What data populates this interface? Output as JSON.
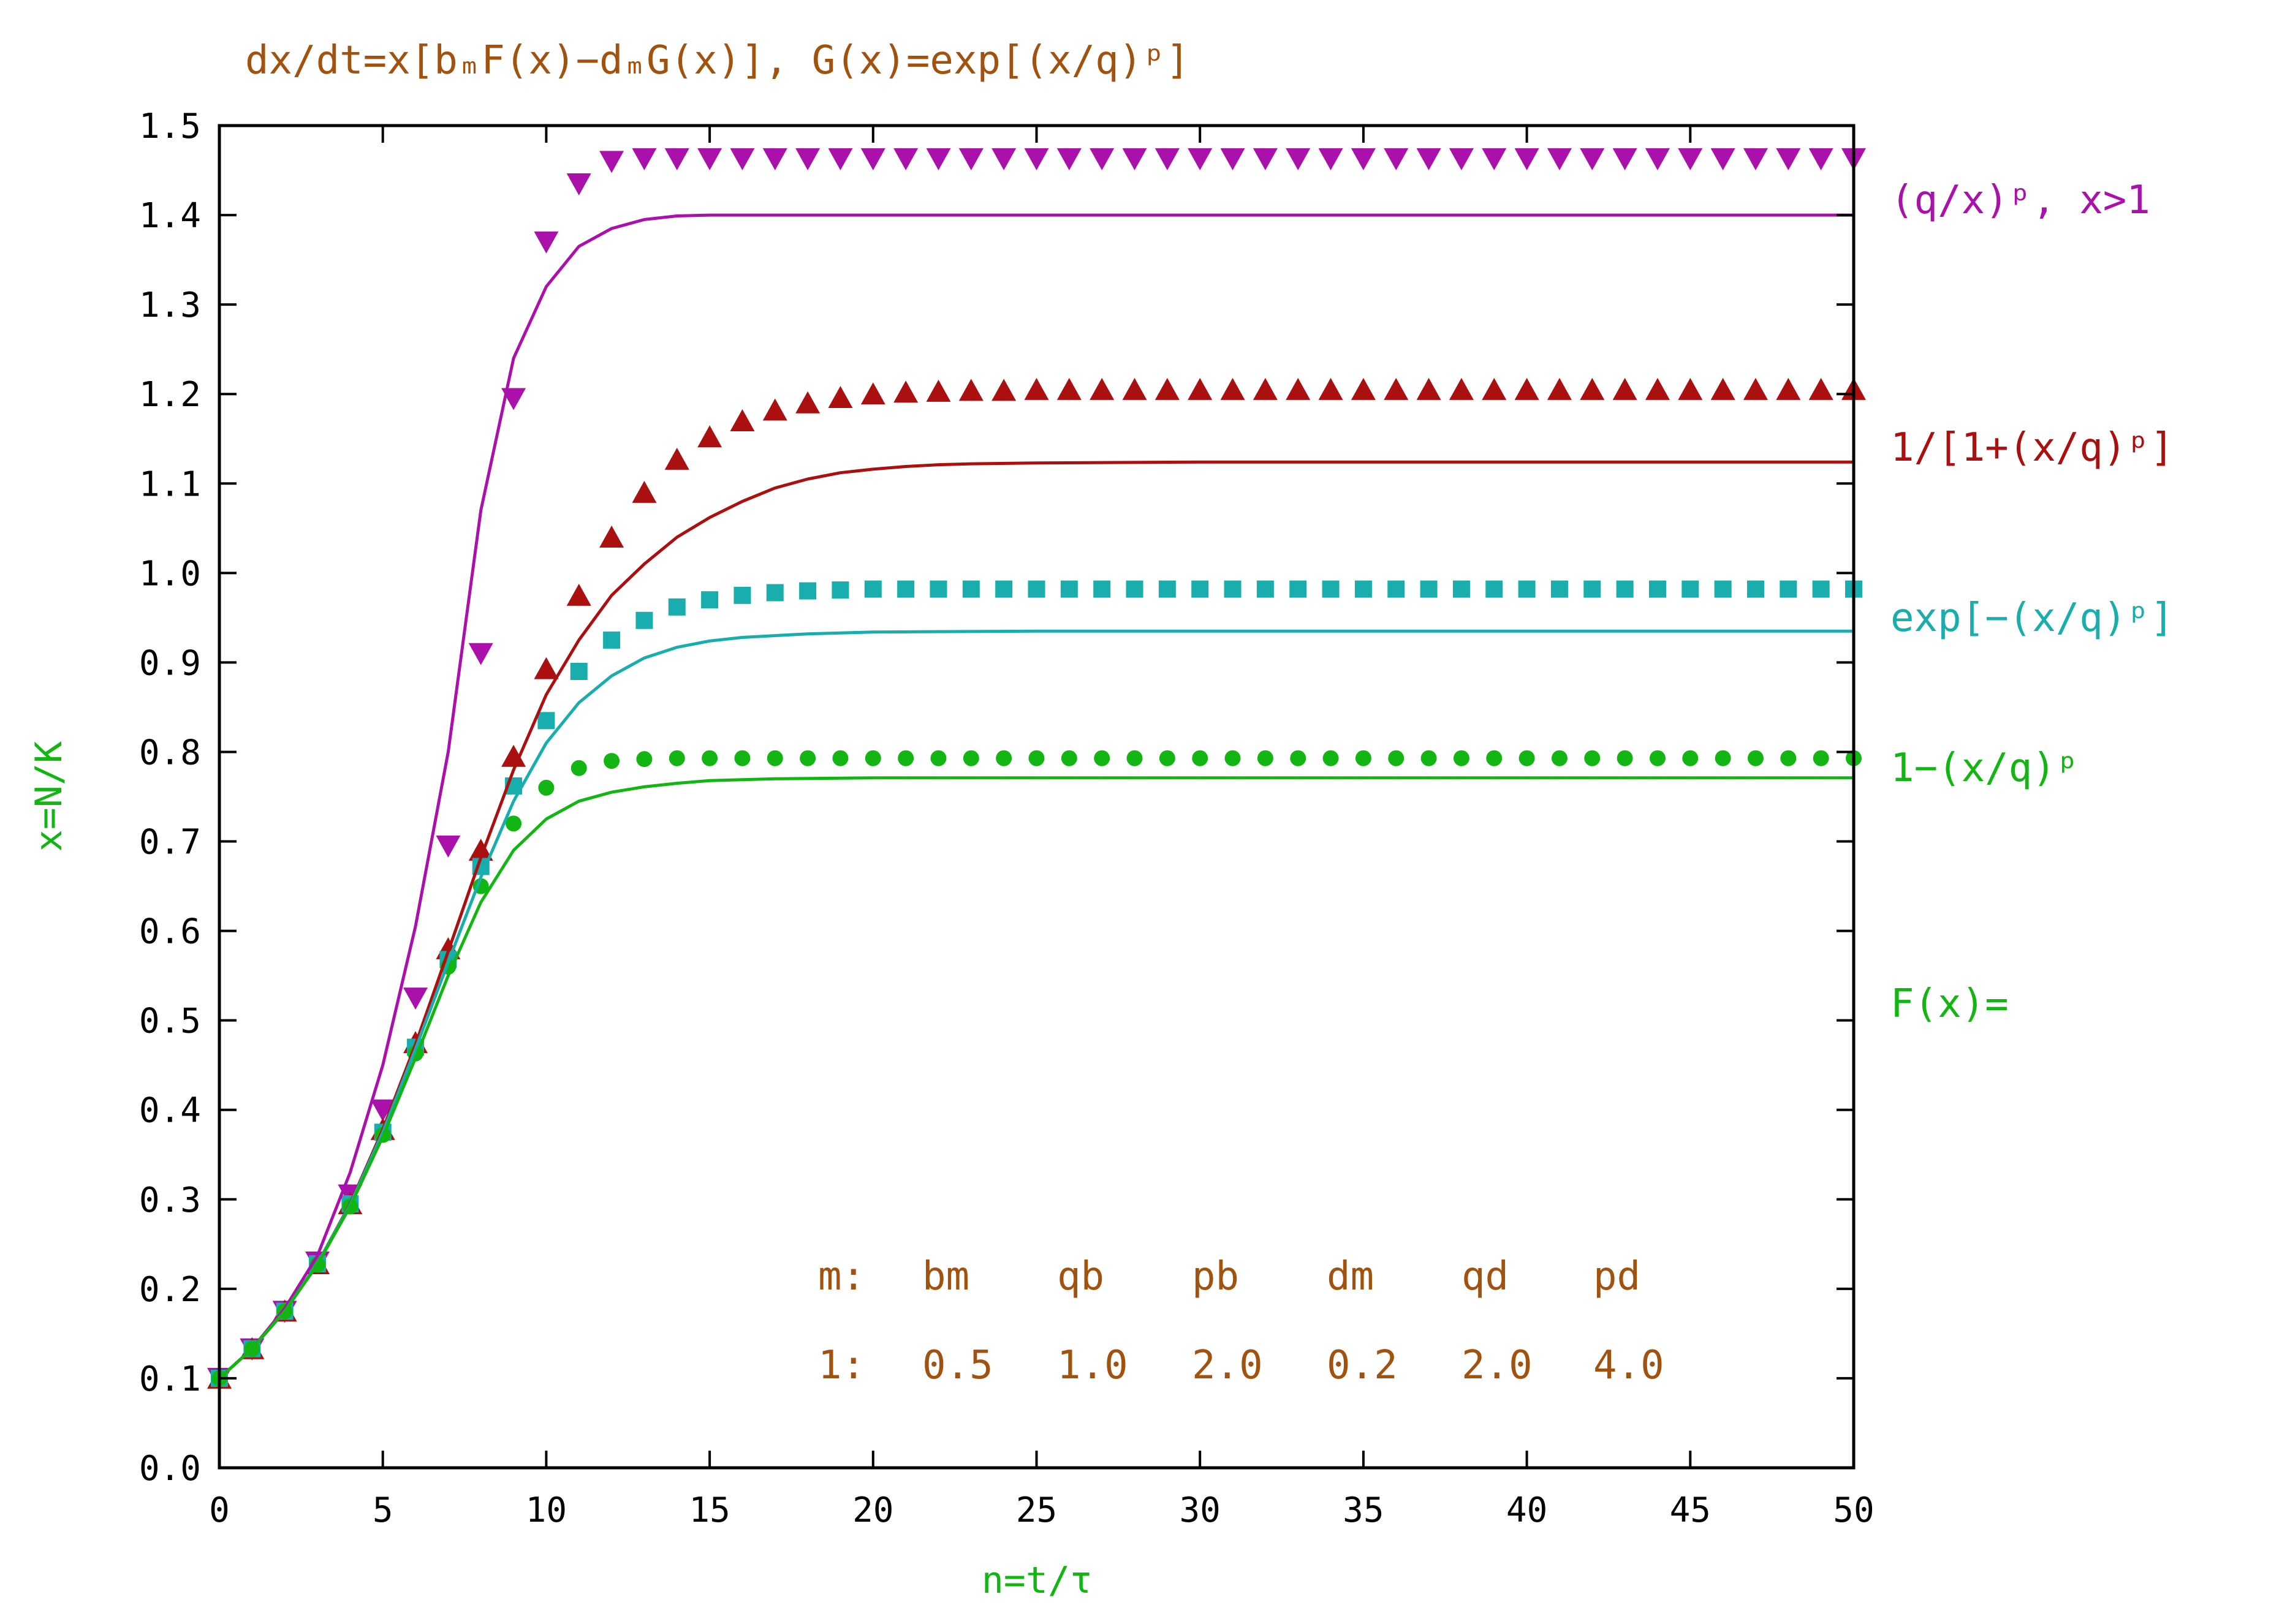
{
  "chart_data": {
    "type": "line",
    "title": "dx/dt=x[bₘF(x)−dₘG(x)],  G(x)=exp[(x/q)ᵖ]",
    "xlabel": "n=t/τ",
    "ylabel": "x=N/K",
    "xlim": [
      0,
      50
    ],
    "ylim": [
      0.0,
      1.5
    ],
    "x_ticks": [
      "0",
      "5",
      "10",
      "15",
      "20",
      "25",
      "30",
      "35",
      "40",
      "45",
      "50"
    ],
    "y_ticks": [
      "0.0",
      "0.1",
      "0.2",
      "0.3",
      "0.4",
      "0.5",
      "0.6",
      "0.7",
      "0.8",
      "0.9",
      "1.0",
      "1.1",
      "1.2",
      "1.3",
      "1.4",
      "1.5"
    ],
    "grid": false,
    "series": [
      {
        "name": "(q/x)ᵖ,  x>1",
        "color": "#aa10aa",
        "marker": "triangle-down",
        "line": [
          [
            0,
            0.1
          ],
          [
            1,
            0.133
          ],
          [
            2,
            0.178
          ],
          [
            3,
            0.237
          ],
          [
            4,
            0.33
          ],
          [
            5,
            0.45
          ],
          [
            6,
            0.605
          ],
          [
            7,
            0.8
          ],
          [
            8,
            1.07
          ],
          [
            9,
            1.24
          ],
          [
            10,
            1.32
          ],
          [
            11,
            1.365
          ],
          [
            12,
            1.385
          ],
          [
            13,
            1.395
          ],
          [
            14,
            1.399
          ],
          [
            15,
            1.4
          ],
          [
            20,
            1.4
          ],
          [
            30,
            1.4
          ],
          [
            50,
            1.4
          ]
        ],
        "points": [
          [
            0,
            0.1
          ],
          [
            1,
            0.133
          ],
          [
            2,
            0.175
          ],
          [
            3,
            0.23
          ],
          [
            4,
            0.305
          ],
          [
            5,
            0.4
          ],
          [
            6,
            0.525
          ],
          [
            7,
            0.695
          ],
          [
            8,
            0.91
          ],
          [
            9,
            1.195
          ],
          [
            10,
            1.37
          ],
          [
            11,
            1.435
          ],
          [
            12,
            1.46
          ],
          [
            13,
            1.463
          ],
          [
            14,
            1.463
          ],
          [
            15,
            1.463
          ],
          [
            16,
            1.463
          ],
          [
            17,
            1.463
          ],
          [
            18,
            1.463
          ],
          [
            19,
            1.463
          ],
          [
            20,
            1.463
          ],
          [
            21,
            1.463
          ],
          [
            22,
            1.463
          ],
          [
            23,
            1.463
          ],
          [
            24,
            1.463
          ],
          [
            25,
            1.463
          ],
          [
            26,
            1.463
          ],
          [
            27,
            1.463
          ],
          [
            28,
            1.463
          ],
          [
            29,
            1.463
          ],
          [
            30,
            1.463
          ],
          [
            31,
            1.463
          ],
          [
            32,
            1.463
          ],
          [
            33,
            1.463
          ],
          [
            34,
            1.463
          ],
          [
            35,
            1.463
          ],
          [
            36,
            1.463
          ],
          [
            37,
            1.463
          ],
          [
            38,
            1.463
          ],
          [
            39,
            1.463
          ],
          [
            40,
            1.463
          ],
          [
            41,
            1.463
          ],
          [
            42,
            1.463
          ],
          [
            43,
            1.463
          ],
          [
            44,
            1.463
          ],
          [
            45,
            1.463
          ],
          [
            46,
            1.463
          ],
          [
            47,
            1.463
          ],
          [
            48,
            1.463
          ],
          [
            49,
            1.463
          ],
          [
            50,
            1.463
          ]
        ]
      },
      {
        "name": "1/[1+(x/q)ᵖ]",
        "color": "#aa1010",
        "marker": "triangle-up",
        "line": [
          [
            0,
            0.1
          ],
          [
            1,
            0.133
          ],
          [
            2,
            0.175
          ],
          [
            3,
            0.228
          ],
          [
            4,
            0.295
          ],
          [
            5,
            0.378
          ],
          [
            6,
            0.473
          ],
          [
            7,
            0.577
          ],
          [
            8,
            0.682
          ],
          [
            9,
            0.78
          ],
          [
            10,
            0.864
          ],
          [
            11,
            0.925
          ],
          [
            12,
            0.975
          ],
          [
            13,
            1.01
          ],
          [
            14,
            1.04
          ],
          [
            15,
            1.062
          ],
          [
            16,
            1.08
          ],
          [
            17,
            1.095
          ],
          [
            18,
            1.105
          ],
          [
            19,
            1.112
          ],
          [
            20,
            1.116
          ],
          [
            21,
            1.119
          ],
          [
            22,
            1.121
          ],
          [
            23,
            1.122
          ],
          [
            25,
            1.123
          ],
          [
            30,
            1.124
          ],
          [
            50,
            1.124
          ]
        ],
        "points": [
          [
            0,
            0.1
          ],
          [
            1,
            0.133
          ],
          [
            2,
            0.175
          ],
          [
            3,
            0.228
          ],
          [
            4,
            0.295
          ],
          [
            5,
            0.378
          ],
          [
            6,
            0.475
          ],
          [
            7,
            0.58
          ],
          [
            8,
            0.69
          ],
          [
            9,
            0.795
          ],
          [
            10,
            0.893
          ],
          [
            11,
            0.975
          ],
          [
            12,
            1.04
          ],
          [
            13,
            1.09
          ],
          [
            14,
            1.127
          ],
          [
            15,
            1.152
          ],
          [
            16,
            1.17
          ],
          [
            17,
            1.182
          ],
          [
            18,
            1.19
          ],
          [
            19,
            1.196
          ],
          [
            20,
            1.2
          ],
          [
            21,
            1.202
          ],
          [
            22,
            1.203
          ],
          [
            23,
            1.204
          ],
          [
            24,
            1.204
          ],
          [
            25,
            1.205
          ],
          [
            26,
            1.205
          ],
          [
            27,
            1.205
          ],
          [
            28,
            1.205
          ],
          [
            29,
            1.205
          ],
          [
            30,
            1.205
          ],
          [
            31,
            1.205
          ],
          [
            32,
            1.205
          ],
          [
            33,
            1.205
          ],
          [
            34,
            1.205
          ],
          [
            35,
            1.205
          ],
          [
            36,
            1.205
          ],
          [
            37,
            1.205
          ],
          [
            38,
            1.205
          ],
          [
            39,
            1.205
          ],
          [
            40,
            1.205
          ],
          [
            41,
            1.205
          ],
          [
            42,
            1.205
          ],
          [
            43,
            1.205
          ],
          [
            44,
            1.205
          ],
          [
            45,
            1.205
          ],
          [
            46,
            1.205
          ],
          [
            47,
            1.205
          ],
          [
            48,
            1.205
          ],
          [
            49,
            1.205
          ],
          [
            50,
            1.205
          ]
        ]
      },
      {
        "name": "exp[−(x/q)ᵖ]",
        "color": "#1aadad",
        "marker": "square",
        "line": [
          [
            0,
            0.1
          ],
          [
            1,
            0.133
          ],
          [
            2,
            0.175
          ],
          [
            3,
            0.228
          ],
          [
            4,
            0.294
          ],
          [
            5,
            0.375
          ],
          [
            6,
            0.468
          ],
          [
            7,
            0.565
          ],
          [
            8,
            0.66
          ],
          [
            9,
            0.745
          ],
          [
            10,
            0.81
          ],
          [
            11,
            0.855
          ],
          [
            12,
            0.885
          ],
          [
            13,
            0.905
          ],
          [
            14,
            0.917
          ],
          [
            15,
            0.924
          ],
          [
            16,
            0.928
          ],
          [
            18,
            0.932
          ],
          [
            20,
            0.934
          ],
          [
            25,
            0.935
          ],
          [
            50,
            0.935
          ]
        ],
        "points": [
          [
            0,
            0.1
          ],
          [
            1,
            0.133
          ],
          [
            2,
            0.175
          ],
          [
            3,
            0.228
          ],
          [
            4,
            0.295
          ],
          [
            5,
            0.375
          ],
          [
            6,
            0.47
          ],
          [
            7,
            0.568
          ],
          [
            8,
            0.672
          ],
          [
            9,
            0.762
          ],
          [
            10,
            0.835
          ],
          [
            11,
            0.89
          ],
          [
            12,
            0.925
          ],
          [
            13,
            0.947
          ],
          [
            14,
            0.962
          ],
          [
            15,
            0.97
          ],
          [
            16,
            0.975
          ],
          [
            17,
            0.978
          ],
          [
            18,
            0.98
          ],
          [
            19,
            0.981
          ],
          [
            20,
            0.982
          ],
          [
            21,
            0.982
          ],
          [
            22,
            0.982
          ],
          [
            23,
            0.982
          ],
          [
            24,
            0.982
          ],
          [
            25,
            0.982
          ],
          [
            26,
            0.982
          ],
          [
            27,
            0.982
          ],
          [
            28,
            0.982
          ],
          [
            29,
            0.982
          ],
          [
            30,
            0.982
          ],
          [
            31,
            0.982
          ],
          [
            32,
            0.982
          ],
          [
            33,
            0.982
          ],
          [
            34,
            0.982
          ],
          [
            35,
            0.982
          ],
          [
            36,
            0.982
          ],
          [
            37,
            0.982
          ],
          [
            38,
            0.982
          ],
          [
            39,
            0.982
          ],
          [
            40,
            0.982
          ],
          [
            41,
            0.982
          ],
          [
            42,
            0.982
          ],
          [
            43,
            0.982
          ],
          [
            44,
            0.982
          ],
          [
            45,
            0.982
          ],
          [
            46,
            0.982
          ],
          [
            47,
            0.982
          ],
          [
            48,
            0.982
          ],
          [
            49,
            0.982
          ],
          [
            50,
            0.982
          ]
        ]
      },
      {
        "name": "1−(x/q)ᵖ",
        "color": "#13b513",
        "marker": "circle",
        "line": [
          [
            0,
            0.1
          ],
          [
            1,
            0.133
          ],
          [
            2,
            0.175
          ],
          [
            3,
            0.227
          ],
          [
            4,
            0.292
          ],
          [
            5,
            0.37
          ],
          [
            6,
            0.458
          ],
          [
            7,
            0.55
          ],
          [
            8,
            0.632
          ],
          [
            9,
            0.69
          ],
          [
            10,
            0.725
          ],
          [
            11,
            0.745
          ],
          [
            12,
            0.755
          ],
          [
            13,
            0.761
          ],
          [
            14,
            0.765
          ],
          [
            15,
            0.768
          ],
          [
            17,
            0.77
          ],
          [
            20,
            0.771
          ],
          [
            50,
            0.771
          ]
        ],
        "points": [
          [
            0,
            0.1
          ],
          [
            1,
            0.133
          ],
          [
            2,
            0.175
          ],
          [
            3,
            0.227
          ],
          [
            4,
            0.292
          ],
          [
            5,
            0.372
          ],
          [
            6,
            0.463
          ],
          [
            7,
            0.56
          ],
          [
            8,
            0.65
          ],
          [
            9,
            0.72
          ],
          [
            10,
            0.76
          ],
          [
            11,
            0.782
          ],
          [
            12,
            0.79
          ],
          [
            13,
            0.792
          ],
          [
            14,
            0.793
          ],
          [
            15,
            0.793
          ],
          [
            16,
            0.793
          ],
          [
            17,
            0.793
          ],
          [
            18,
            0.793
          ],
          [
            19,
            0.793
          ],
          [
            20,
            0.793
          ],
          [
            21,
            0.793
          ],
          [
            22,
            0.793
          ],
          [
            23,
            0.793
          ],
          [
            24,
            0.793
          ],
          [
            25,
            0.793
          ],
          [
            26,
            0.793
          ],
          [
            27,
            0.793
          ],
          [
            28,
            0.793
          ],
          [
            29,
            0.793
          ],
          [
            30,
            0.793
          ],
          [
            31,
            0.793
          ],
          [
            32,
            0.793
          ],
          [
            33,
            0.793
          ],
          [
            34,
            0.793
          ],
          [
            35,
            0.793
          ],
          [
            36,
            0.793
          ],
          [
            37,
            0.793
          ],
          [
            38,
            0.793
          ],
          [
            39,
            0.793
          ],
          [
            40,
            0.793
          ],
          [
            41,
            0.793
          ],
          [
            42,
            0.793
          ],
          [
            43,
            0.793
          ],
          [
            44,
            0.793
          ],
          [
            45,
            0.793
          ],
          [
            46,
            0.793
          ],
          [
            47,
            0.793
          ],
          [
            48,
            0.793
          ],
          [
            49,
            0.793
          ],
          [
            50,
            0.793
          ]
        ]
      }
    ],
    "annotations": {
      "f_label": "F(x)=",
      "param_header": [
        "m:",
        "bm",
        "qb",
        "pb",
        "dm",
        "qd",
        "pd"
      ],
      "param_row": [
        "1:",
        "0.5",
        "1.0",
        "2.0",
        "0.2",
        "2.0",
        "4.0"
      ]
    }
  }
}
